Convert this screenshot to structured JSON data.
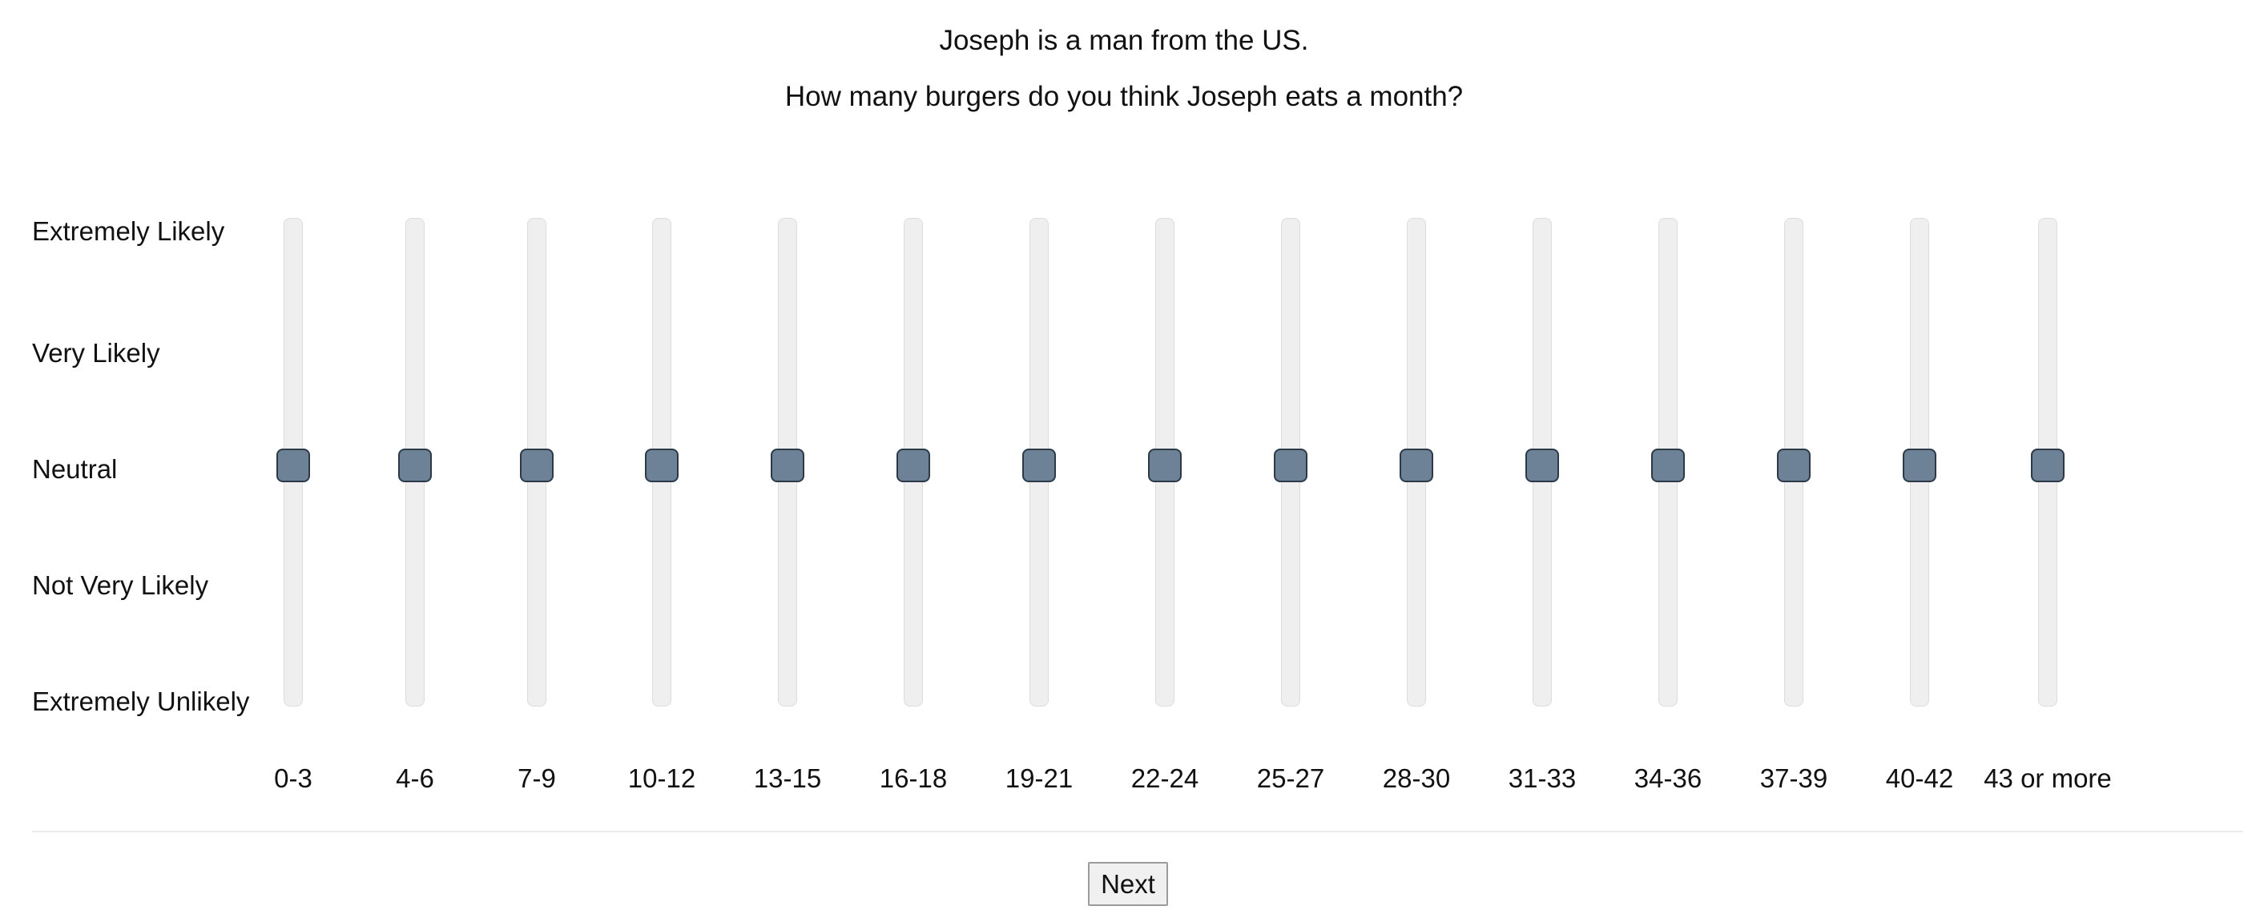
{
  "prompt": {
    "intro": "Joseph is a man from the US.",
    "question": "How many burgers do you think Joseph eats a month?"
  },
  "scale_labels": [
    "Extremely Likely",
    "Very Likely",
    "Neutral",
    "Not Very Likely",
    "Extremely Unlikely"
  ],
  "sliders": [
    {
      "label": "0-3",
      "value": "Neutral"
    },
    {
      "label": "4-6",
      "value": "Neutral"
    },
    {
      "label": "7-9",
      "value": "Neutral"
    },
    {
      "label": "10-12",
      "value": "Neutral"
    },
    {
      "label": "13-15",
      "value": "Neutral"
    },
    {
      "label": "16-18",
      "value": "Neutral"
    },
    {
      "label": "19-21",
      "value": "Neutral"
    },
    {
      "label": "22-24",
      "value": "Neutral"
    },
    {
      "label": "25-27",
      "value": "Neutral"
    },
    {
      "label": "28-30",
      "value": "Neutral"
    },
    {
      "label": "31-33",
      "value": "Neutral"
    },
    {
      "label": "34-36",
      "value": "Neutral"
    },
    {
      "label": "37-39",
      "value": "Neutral"
    },
    {
      "label": "40-42",
      "value": "Neutral"
    },
    {
      "label": "43 or more",
      "value": "Neutral"
    }
  ],
  "colors": {
    "handle": "#6d8296",
    "handle_border": "#2c3a48",
    "track": "#efefef"
  },
  "next_button": {
    "label": "Next"
  }
}
